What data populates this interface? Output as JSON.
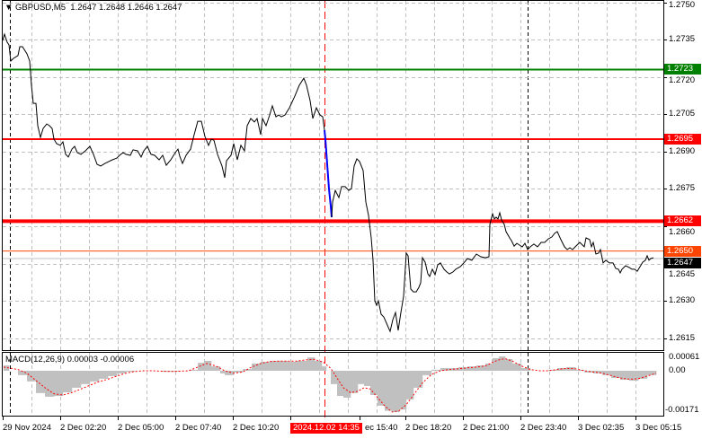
{
  "header": {
    "symbol": "GBPUSD,M5",
    "open": "1.2647",
    "high": "1.2648",
    "low": "1.2646",
    "close": "1.2647",
    "menu_icon": "triangle-down-icon"
  },
  "price_axis": {
    "labels": [
      "1.2750",
      "1.2735",
      "1.2720",
      "1.2705",
      "1.2690",
      "1.2675",
      "1.2660",
      "1.2645",
      "1.2630",
      "1.2615"
    ]
  },
  "levels": [
    {
      "name": "green-level",
      "value": "1.2723",
      "color": "#008000"
    },
    {
      "name": "red-level-upper",
      "value": "1.2695",
      "color": "#ff0000"
    },
    {
      "name": "red-level-lower",
      "value": "1.2662",
      "color": "#ff0000"
    },
    {
      "name": "orange-level",
      "value": "1.2650",
      "color": "#ff4500"
    },
    {
      "name": "bid-level",
      "value": "1.2647",
      "color": "#000000"
    }
  ],
  "time_axis": {
    "labels": [
      "29 Nov 2024",
      "2 Dec 02:20",
      "2 Dec 05:00",
      "2 Dec 07:40",
      "2 Dec 10:20",
      "2024.12.02 14:35",
      "ec 15:40",
      "2 Dec 18:20",
      "2 Dec 21:00",
      "2 Dec 23:40",
      "3 Dec 02:35",
      "3 Dec 05:15"
    ],
    "highlight": "2024.12.02 14:35"
  },
  "macd": {
    "title": "MACD(12,26,9) 0.00003 -0.00006",
    "axis_labels": [
      "0.00061",
      "0.00",
      "-0.00171"
    ]
  },
  "chart_data": {
    "type": "line",
    "colors": {
      "price": "#000000",
      "highlight_segment": "#0000ff",
      "macd_hist": "#c0c0c0",
      "macd_signal": "#ff0000"
    },
    "price_series": [
      [
        1.5,
        1.27347
      ],
      [
        2.5,
        1.27372
      ],
      [
        4,
        1.2734
      ],
      [
        5,
        1.27329
      ],
      [
        6,
        1.27264
      ],
      [
        7.5,
        1.27275
      ],
      [
        10,
        1.27286
      ],
      [
        11,
        1.27322
      ],
      [
        12.5,
        1.27322
      ],
      [
        15,
        1.27293
      ],
      [
        16.5,
        1.27264
      ],
      [
        17.5,
        1.27167
      ],
      [
        18.5,
        1.27094
      ],
      [
        20,
        1.27094
      ],
      [
        21,
        1.27004
      ],
      [
        22.5,
        1.26957
      ],
      [
        24,
        1.26993
      ],
      [
        26,
        1.27011
      ],
      [
        27.5,
        1.27004
      ],
      [
        29,
        1.26993
      ],
      [
        30,
        1.2695
      ],
      [
        31.5,
        1.26932
      ],
      [
        33.5,
        1.26925
      ],
      [
        35,
        1.26939
      ],
      [
        36.5,
        1.26889
      ],
      [
        38,
        1.26878
      ],
      [
        40,
        1.2691
      ],
      [
        41.5,
        1.26921
      ],
      [
        43,
        1.26896
      ],
      [
        45,
        1.26889
      ],
      [
        47.5,
        1.26903
      ],
      [
        50,
        1.26921
      ],
      [
        52,
        1.26889
      ],
      [
        54,
        1.26849
      ],
      [
        56,
        1.26842
      ],
      [
        58.5,
        1.26853
      ],
      [
        60.5,
        1.2686
      ],
      [
        62.5,
        1.26867
      ],
      [
        65,
        1.26874
      ],
      [
        66.5,
        1.26885
      ],
      [
        68.5,
        1.26896
      ],
      [
        70,
        1.26889
      ],
      [
        72.5,
        1.26885
      ],
      [
        74,
        1.26907
      ],
      [
        76.5,
        1.26903
      ],
      [
        78.5,
        1.26878
      ],
      [
        80,
        1.26903
      ],
      [
        82,
        1.26921
      ],
      [
        84,
        1.26889
      ],
      [
        86,
        1.26885
      ],
      [
        88.5,
        1.26867
      ],
      [
        90.5,
        1.26885
      ],
      [
        92.5,
        1.26845
      ],
      [
        95,
        1.26867
      ],
      [
        97.5,
        1.26896
      ],
      [
        99,
        1.2691
      ],
      [
        100,
        1.26881
      ],
      [
        101.5,
        1.26852
      ],
      [
        103.5,
        1.26885
      ],
      [
        106,
        1.2691
      ],
      [
        108,
        1.26968
      ],
      [
        110,
        1.27022
      ],
      [
        112,
        1.27022
      ],
      [
        114,
        1.26961
      ],
      [
        116,
        1.26925
      ],
      [
        117.5,
        1.2695
      ],
      [
        119,
        1.26946
      ],
      [
        121,
        1.26889
      ],
      [
        123.5,
        1.26842
      ],
      [
        125,
        1.26795
      ],
      [
        126,
        1.26863
      ],
      [
        128.5,
        1.26885
      ],
      [
        130,
        1.26932
      ],
      [
        132,
        1.26867
      ],
      [
        134,
        1.26925
      ],
      [
        136,
        1.26903
      ],
      [
        137.5,
        1.27004
      ],
      [
        139.5,
        1.27033
      ],
      [
        141.5,
        1.27019
      ],
      [
        143,
        1.27033
      ],
      [
        145,
        1.26968
      ],
      [
        146,
        1.27033
      ],
      [
        148,
        1.27004
      ],
      [
        150,
        1.27047
      ],
      [
        151.5,
        1.27084
      ],
      [
        153.5,
        1.2704
      ],
      [
        155,
        1.27047
      ],
      [
        156.5,
        1.2704
      ],
      [
        158.5,
        1.27047
      ],
      [
        161,
        1.27076
      ],
      [
        164,
        1.27123
      ],
      [
        166.5,
        1.27167
      ],
      [
        169,
        1.27195
      ],
      [
        170.5,
        1.27167
      ],
      [
        172.5,
        1.27105
      ],
      [
        174,
        1.27033
      ],
      [
        176,
        1.27076
      ],
      [
        178,
        1.27047
      ],
      [
        179.5,
        1.2704
      ],
      [
        180.5,
        1.26986
      ]
    ],
    "highlight_series": [
      [
        180.5,
        1.26986
      ],
      [
        181,
        1.2695
      ],
      [
        182,
        1.2685
      ],
      [
        183,
        1.2675
      ],
      [
        184,
        1.2668
      ],
      [
        184.5,
        1.26636
      ]
    ],
    "price_series_after": [
      [
        184.5,
        1.26636
      ],
      [
        185,
        1.26697
      ],
      [
        186.5,
        1.26744
      ],
      [
        188.5,
        1.26715
      ],
      [
        190,
        1.26759
      ],
      [
        192,
        1.26759
      ],
      [
        194,
        1.26744
      ],
      [
        195.5,
        1.26751
      ],
      [
        197,
        1.26842
      ],
      [
        198.5,
        1.26871
      ],
      [
        200,
        1.2686
      ],
      [
        202,
        1.26824
      ],
      [
        203.5,
        1.26697
      ],
      [
        205,
        1.26643
      ],
      [
        206.5,
        1.26553
      ],
      [
        207.5,
        1.26463
      ],
      [
        208.5,
        1.263
      ],
      [
        209.5,
        1.26282
      ],
      [
        210.5,
        1.263
      ],
      [
        212,
        1.26246
      ],
      [
        213.5,
        1.26235
      ],
      [
        215,
        1.2621
      ],
      [
        216.5,
        1.26185
      ],
      [
        217,
        1.26177
      ],
      [
        218.5,
        1.26224
      ],
      [
        220,
        1.26253
      ],
      [
        221.5,
        1.26181
      ],
      [
        223,
        1.26253
      ],
      [
        224.5,
        1.26318
      ],
      [
        226,
        1.26492
      ],
      [
        227,
        1.26481
      ],
      [
        228.5,
        1.26347
      ],
      [
        230,
        1.26336
      ],
      [
        231.5,
        1.26336
      ],
      [
        233,
        1.26354
      ],
      [
        234,
        1.26372
      ],
      [
        235,
        1.26473
      ],
      [
        236.5,
        1.26455
      ],
      [
        238,
        1.26408
      ],
      [
        239,
        1.26398
      ],
      [
        240.5,
        1.26427
      ],
      [
        242,
        1.26405
      ],
      [
        243.5,
        1.26445
      ],
      [
        245,
        1.26452
      ],
      [
        247,
        1.26427
      ],
      [
        248.5,
        1.26416
      ],
      [
        250,
        1.26408
      ],
      [
        252,
        1.26416
      ],
      [
        253.5,
        1.26427
      ],
      [
        256,
        1.26437
      ],
      [
        258,
        1.26452
      ],
      [
        260,
        1.2647
      ],
      [
        262.5,
        1.26463
      ],
      [
        265,
        1.26488
      ],
      [
        267.5,
        1.26477
      ],
      [
        270,
        1.26473
      ],
      [
        272,
        1.26477
      ],
      [
        272.5,
        1.26607
      ],
      [
        274,
        1.2665
      ],
      [
        275,
        1.26629
      ],
      [
        276,
        1.26636
      ],
      [
        277,
        1.26629
      ],
      [
        278,
        1.26654
      ],
      [
        279,
        1.26625
      ],
      [
        280.5,
        1.26607
      ],
      [
        281.5,
        1.26578
      ],
      [
        283.5,
        1.26553
      ],
      [
        284.5,
        1.26542
      ],
      [
        286,
        1.2652
      ],
      [
        287.5,
        1.26531
      ],
      [
        289,
        1.26524
      ],
      [
        290.5,
        1.26517
      ],
      [
        292,
        1.26531
      ],
      [
        293.5,
        1.26506
      ],
      [
        295,
        1.26517
      ],
      [
        297,
        1.26528
      ],
      [
        299,
        1.26517
      ],
      [
        301,
        1.26535
      ],
      [
        303,
        1.26535
      ],
      [
        305,
        1.26549
      ],
      [
        307,
        1.26557
      ],
      [
        308.5,
        1.26571
      ],
      [
        310,
        1.26578
      ],
      [
        312,
        1.26546
      ],
      [
        314,
        1.26517
      ],
      [
        315.5,
        1.26506
      ],
      [
        317,
        1.26513
      ],
      [
        318.5,
        1.26506
      ],
      [
        320,
        1.26517
      ],
      [
        322.5,
        1.26535
      ],
      [
        325,
        1.26517
      ],
      [
        326,
        1.26553
      ],
      [
        328,
        1.26546
      ],
      [
        329,
        1.26517
      ],
      [
        330,
        1.26535
      ],
      [
        331.5,
        1.26488
      ],
      [
        333,
        1.26492
      ],
      [
        334,
        1.26506
      ],
      [
        335.5,
        1.26452
      ],
      [
        337,
        1.26463
      ],
      [
        339,
        1.26452
      ],
      [
        341,
        1.26452
      ],
      [
        342.5,
        1.2643
      ],
      [
        344,
        1.26427
      ],
      [
        345,
        1.26412
      ],
      [
        346,
        1.26427
      ],
      [
        348,
        1.26441
      ],
      [
        350,
        1.26434
      ],
      [
        351.5,
        1.26427
      ],
      [
        353,
        1.26427
      ],
      [
        354.5,
        1.26419
      ],
      [
        356,
        1.26437
      ],
      [
        357.5,
        1.26455
      ],
      [
        359,
        1.26463
      ],
      [
        360,
        1.26481
      ],
      [
        361,
        1.26463
      ],
      [
        362,
        1.2647
      ],
      [
        363.5,
        1.26473
      ]
    ],
    "macd_histogram": [
      [
        2,
        0.00022
      ],
      [
        5,
        0
      ],
      [
        10,
        -0.00018
      ],
      [
        15,
        -0.00044
      ],
      [
        20,
        -0.00092
      ],
      [
        25,
        -0.00107
      ],
      [
        30,
        -0.00104
      ],
      [
        35,
        -0.00089
      ],
      [
        40,
        -0.0007
      ],
      [
        45,
        -0.00055
      ],
      [
        50,
        -0.00044
      ],
      [
        55,
        -0.00033
      ],
      [
        60,
        -0.00022
      ],
      [
        65,
        -0.00011
      ],
      [
        70,
        -4e-05
      ],
      [
        75,
        0
      ],
      [
        85,
        0
      ],
      [
        90,
        -4e-05
      ],
      [
        95,
        -4e-05
      ],
      [
        100,
        0
      ],
      [
        105,
        4e-05
      ],
      [
        110,
        0.00033
      ],
      [
        113.5,
        0.00041
      ],
      [
        117.5,
        0.00018
      ],
      [
        122.5,
        -0.00011
      ],
      [
        125,
        -0.00018
      ],
      [
        130,
        -7e-05
      ],
      [
        135,
        7e-05
      ],
      [
        140,
        0.0003
      ],
      [
        145,
        0.00037
      ],
      [
        150,
        0.00041
      ],
      [
        155,
        0.00041
      ],
      [
        160,
        0.00037
      ],
      [
        165,
        0.00041
      ],
      [
        171,
        0.00055
      ],
      [
        175,
        0.00041
      ],
      [
        179,
        0.00018
      ],
      [
        181.5,
        0
      ],
      [
        184,
        -0.00055
      ],
      [
        187.5,
        -0.00104
      ],
      [
        191,
        -0.00111
      ],
      [
        195,
        -0.00092
      ],
      [
        199,
        -0.00055
      ],
      [
        202.5,
        -0.00063
      ],
      [
        206,
        -0.001
      ],
      [
        210,
        -0.00144
      ],
      [
        214,
        -0.00165
      ],
      [
        218,
        -0.00171
      ],
      [
        222,
        -0.0016
      ],
      [
        226,
        -0.00118
      ],
      [
        230,
        -0.0007
      ],
      [
        235,
        -0.00018
      ],
      [
        240,
        4e-05
      ],
      [
        245,
        0.00011
      ],
      [
        250,
        0.00011
      ],
      [
        255,
        0.00015
      ],
      [
        260,
        0.00018
      ],
      [
        265,
        0.00022
      ],
      [
        270,
        0.0003
      ],
      [
        274,
        0.00052
      ],
      [
        277.5,
        0.00059
      ],
      [
        281,
        0.00048
      ],
      [
        285,
        0.0003
      ],
      [
        290,
        0.00011
      ],
      [
        295,
        0
      ],
      [
        300,
        0
      ],
      [
        305,
        4e-05
      ],
      [
        310,
        0.00011
      ],
      [
        315,
        0.00015
      ],
      [
        320,
        4e-05
      ],
      [
        325,
        -7e-05
      ],
      [
        330,
        -0.00011
      ],
      [
        335,
        -0.00018
      ],
      [
        340,
        -0.0003
      ],
      [
        345,
        -0.00037
      ],
      [
        350,
        -0.00041
      ],
      [
        355,
        -0.00033
      ],
      [
        360,
        -0.00018
      ],
      [
        365,
        0
      ]
    ],
    "macd_signal": [
      [
        2,
        0.00015
      ],
      [
        10,
        5e-05
      ],
      [
        15,
        -0.0001
      ],
      [
        20,
        -0.0004
      ],
      [
        25,
        -0.0007
      ],
      [
        30,
        -0.00095
      ],
      [
        35,
        -0.001
      ],
      [
        40,
        -0.0009
      ],
      [
        45,
        -0.00075
      ],
      [
        50,
        -0.0006
      ],
      [
        55,
        -0.00045
      ],
      [
        60,
        -0.00035
      ],
      [
        65,
        -0.00022
      ],
      [
        70,
        -0.0001
      ],
      [
        75,
        -3e-05
      ],
      [
        80,
        0
      ],
      [
        85,
        0
      ],
      [
        90,
        -2e-05
      ],
      [
        95,
        -3e-05
      ],
      [
        100,
        -2e-05
      ],
      [
        105,
        0
      ],
      [
        110,
        0.00015
      ],
      [
        115,
        0.0003
      ],
      [
        120,
        0.0002
      ],
      [
        125,
        0
      ],
      [
        130,
        -0.0001
      ],
      [
        135,
        -5e-05
      ],
      [
        140,
        0.00015
      ],
      [
        145,
        0.0003
      ],
      [
        150,
        0.00038
      ],
      [
        155,
        0.0004
      ],
      [
        160,
        0.0004
      ],
      [
        165,
        0.0004
      ],
      [
        170,
        0.00045
      ],
      [
        175,
        0.00047
      ],
      [
        180,
        0.00035
      ],
      [
        184,
        0.0001
      ],
      [
        187.5,
        -0.0003
      ],
      [
        191,
        -0.0007
      ],
      [
        195,
        -0.0009
      ],
      [
        199,
        -0.00085
      ],
      [
        202.5,
        -0.0007
      ],
      [
        206,
        -0.00075
      ],
      [
        210,
        -0.0011
      ],
      [
        214,
        -0.00145
      ],
      [
        218,
        -0.0017
      ],
      [
        222,
        -0.00165
      ],
      [
        226,
        -0.0014
      ],
      [
        230,
        -0.001
      ],
      [
        235,
        -0.0005
      ],
      [
        240,
        -0.00015
      ],
      [
        245,
        0
      ],
      [
        250,
        5e-05
      ],
      [
        255,
        8e-05
      ],
      [
        260,
        0.00012
      ],
      [
        265,
        0.00015
      ],
      [
        270,
        0.0002
      ],
      [
        274,
        0.00035
      ],
      [
        277.5,
        0.00045
      ],
      [
        281,
        0.0005
      ],
      [
        285,
        0.0004
      ],
      [
        290,
        0.0002
      ],
      [
        295,
        5e-05
      ],
      [
        300,
        0
      ],
      [
        305,
        0
      ],
      [
        310,
        5e-05
      ],
      [
        315,
        0.0001
      ],
      [
        320,
        8e-05
      ],
      [
        325,
        0
      ],
      [
        330,
        -5e-05
      ],
      [
        335,
        -0.0001
      ],
      [
        340,
        -0.0002
      ],
      [
        345,
        -0.0003
      ],
      [
        350,
        -0.00035
      ],
      [
        355,
        -0.00033
      ],
      [
        360,
        -0.00022
      ],
      [
        365,
        -0.0001
      ]
    ]
  }
}
